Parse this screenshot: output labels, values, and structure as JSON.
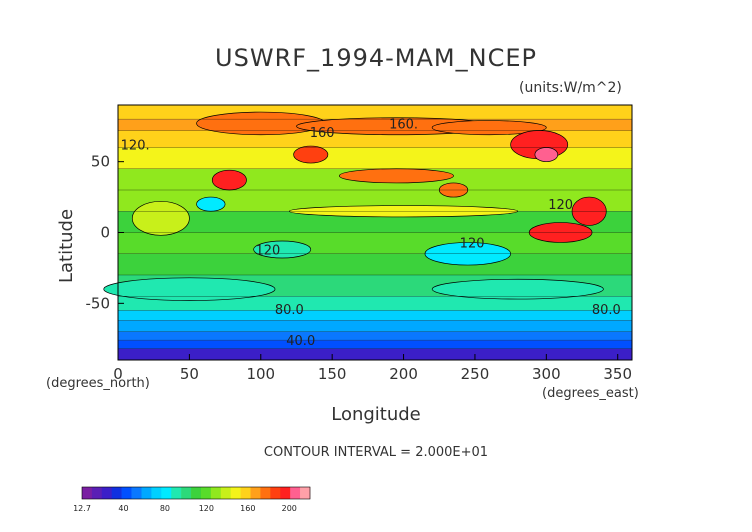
{
  "chart_data": {
    "type": "heatmap",
    "title": "USWRF_1994-MAM_NCEP",
    "units": "(units:W/m^2)",
    "xlabel": "Longitude",
    "ylabel": "Latitude",
    "x_units": "(degrees_east)",
    "y_units": "(degrees_north)",
    "xlim": [
      0,
      360
    ],
    "ylim": [
      -90,
      90
    ],
    "x_ticks": [
      0,
      50,
      100,
      150,
      200,
      250,
      300,
      350
    ],
    "y_ticks": [
      -50,
      0,
      50
    ],
    "contour_interval": "CONTOUR INTERVAL = 2.000E+01",
    "contour_labels": [
      {
        "text": "160.",
        "lon": 200,
        "lat": 77
      },
      {
        "text": "160",
        "lon": 143,
        "lat": 71
      },
      {
        "text": "120.",
        "lon": 12,
        "lat": 62
      },
      {
        "text": "120",
        "lon": 310,
        "lat": 20
      },
      {
        "text": "120",
        "lon": 248,
        "lat": -7
      },
      {
        "text": "120",
        "lon": 105,
        "lat": -12
      },
      {
        "text": "80.0",
        "lon": 120,
        "lat": -54
      },
      {
        "text": "80.0",
        "lon": 342,
        "lat": -54
      },
      {
        "text": "40.0",
        "lon": 128,
        "lat": -76
      }
    ],
    "colorbar": {
      "min": 12.7,
      "tick_labels": [
        "12.7",
        "40",
        "80",
        "120",
        "160",
        "200"
      ],
      "tick_values": [
        12.7,
        40,
        80,
        120,
        160,
        200
      ],
      "colors": [
        "#7a1fa2",
        "#5a1fb5",
        "#3b1fc8",
        "#1030e0",
        "#0050ff",
        "#0a78ff",
        "#00a8ff",
        "#00d0ff",
        "#00eaff",
        "#20e8b0",
        "#2cd97a",
        "#3cd23c",
        "#58dc2a",
        "#90e81e",
        "#c8f01a",
        "#f4f41a",
        "#ffd21a",
        "#ffa01a",
        "#ff7010",
        "#ff4010",
        "#ff2020",
        "#ff6090",
        "#ffa0a8"
      ]
    },
    "bands": [
      {
        "lat_min": -90,
        "lat_max": -82,
        "value": 20
      },
      {
        "lat_min": -82,
        "lat_max": -76,
        "value": 40
      },
      {
        "lat_min": -76,
        "lat_max": -70,
        "value": 55
      },
      {
        "lat_min": -70,
        "lat_max": -62,
        "value": 65
      },
      {
        "lat_min": -62,
        "lat_max": -55,
        "value": 75
      },
      {
        "lat_min": -55,
        "lat_max": -45,
        "value": 90
      },
      {
        "lat_min": -45,
        "lat_max": -30,
        "value": 100
      },
      {
        "lat_min": -30,
        "lat_max": -15,
        "value": 110
      },
      {
        "lat_min": -15,
        "lat_max": 0,
        "value": 120
      },
      {
        "lat_min": 0,
        "lat_max": 15,
        "value": 110
      },
      {
        "lat_min": 15,
        "lat_max": 30,
        "value": 125
      },
      {
        "lat_min": 30,
        "lat_max": 45,
        "value": 130
      },
      {
        "lat_min": 45,
        "lat_max": 60,
        "value": 145
      },
      {
        "lat_min": 60,
        "lat_max": 72,
        "value": 160
      },
      {
        "lat_min": 72,
        "lat_max": 80,
        "value": 170
      },
      {
        "lat_min": 80,
        "lat_max": 90,
        "value": 160
      }
    ],
    "features": [
      {
        "lon": 100,
        "lat": 77,
        "w": 45,
        "h": 8,
        "value": 180
      },
      {
        "lon": 195,
        "lat": 75,
        "w": 70,
        "h": 6,
        "value": 180
      },
      {
        "lon": 260,
        "lat": 74,
        "w": 40,
        "h": 5,
        "value": 175
      },
      {
        "lon": 295,
        "lat": 62,
        "w": 20,
        "h": 10,
        "value": 195
      },
      {
        "lon": 300,
        "lat": 55,
        "w": 8,
        "h": 5,
        "value": 210
      },
      {
        "lon": 135,
        "lat": 55,
        "w": 12,
        "h": 6,
        "value": 190
      },
      {
        "lon": 78,
        "lat": 37,
        "w": 12,
        "h": 7,
        "value": 200
      },
      {
        "lon": 195,
        "lat": 40,
        "w": 40,
        "h": 5,
        "value": 175
      },
      {
        "lon": 235,
        "lat": 30,
        "w": 10,
        "h": 5,
        "value": 175
      },
      {
        "lon": 330,
        "lat": 15,
        "w": 12,
        "h": 10,
        "value": 195
      },
      {
        "lon": 310,
        "lat": 0,
        "w": 22,
        "h": 7,
        "value": 195
      },
      {
        "lon": 200,
        "lat": 15,
        "w": 80,
        "h": 4,
        "value": 145
      },
      {
        "lon": 65,
        "lat": 20,
        "w": 10,
        "h": 5,
        "value": 80
      },
      {
        "lon": 30,
        "lat": 10,
        "w": 20,
        "h": 12,
        "value": 140
      },
      {
        "lon": 245,
        "lat": -15,
        "w": 30,
        "h": 8,
        "value": 80
      },
      {
        "lon": 115,
        "lat": -12,
        "w": 20,
        "h": 6,
        "value": 95
      },
      {
        "lon": 50,
        "lat": -40,
        "w": 60,
        "h": 8,
        "value": 90
      },
      {
        "lon": 280,
        "lat": -40,
        "w": 60,
        "h": 7,
        "value": 90
      }
    ]
  }
}
